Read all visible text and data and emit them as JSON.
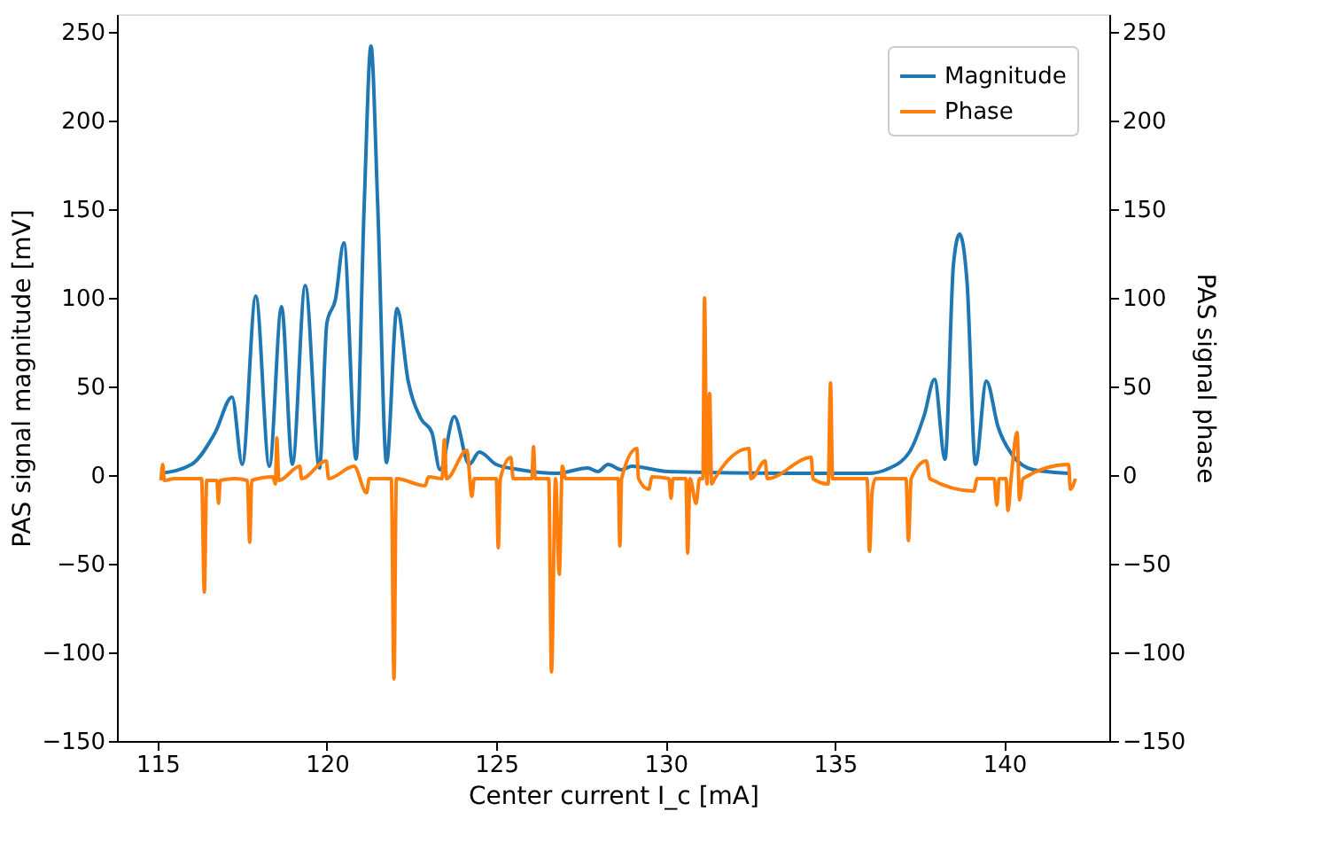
{
  "chart_data": {
    "type": "line",
    "xlabel": "Center current I_c [mA]",
    "ylabel": "PAS signal magnitude [mV]",
    "y2label": "PAS signal phase",
    "xlim": [
      113.8,
      143.1
    ],
    "xticks": [
      115,
      120,
      125,
      130,
      135,
      140
    ],
    "ylim": [
      -150,
      260
    ],
    "yticks": [
      -150,
      -100,
      -50,
      0,
      50,
      100,
      150,
      200,
      250
    ],
    "y2lim": [
      -150,
      260
    ],
    "y2ticks": [
      -150,
      -100,
      -50,
      0,
      50,
      100,
      150,
      200,
      250
    ],
    "grid": false,
    "legend": "top right",
    "line_style": "solid",
    "marker": "none",
    "series": [
      {
        "name": "Magnitude",
        "color": "#1f77b4",
        "x": [
          115.1,
          116.0,
          116.7,
          117.2,
          117.5,
          117.9,
          118.3,
          118.66,
          118.98,
          119.36,
          119.78,
          120.0,
          120.25,
          120.5,
          120.86,
          121.1,
          121.3,
          121.5,
          121.76,
          122.07,
          122.4,
          122.77,
          123.1,
          123.34,
          123.76,
          124.2,
          124.5,
          125.0,
          125.7,
          126.8,
          127.7,
          128.0,
          128.3,
          128.7,
          129.0,
          130.07,
          133.55,
          136.0,
          136.5,
          137.2,
          137.64,
          137.94,
          138.25,
          138.5,
          138.68,
          138.9,
          139.15,
          139.47,
          139.82,
          140.25,
          140.86,
          141.9
        ],
        "values": [
          1,
          6,
          24,
          44,
          6,
          101,
          5,
          95,
          6,
          107,
          4,
          86,
          99,
          131,
          9,
          152,
          242,
          152,
          7,
          94,
          53,
          32,
          24,
          3,
          33,
          6,
          13,
          6,
          3,
          1,
          4,
          2,
          6,
          3,
          5,
          2,
          1,
          1,
          3,
          13,
          34,
          54,
          9,
          119,
          136,
          109,
          6,
          53,
          27,
          11,
          3,
          1
        ]
      },
      {
        "name": "Phase",
        "color": "#ff7f0e",
        "axis": "y2",
        "x": [
          115.1,
          115.15,
          115.2,
          115.5,
          116.3,
          116.38,
          116.45,
          116.75,
          116.8,
          116.85,
          117.3,
          117.65,
          117.72,
          117.78,
          118.4,
          118.48,
          118.52,
          118.58,
          119.2,
          119.25,
          119.98,
          120.05,
          120.8,
          121.17,
          121.25,
          121.9,
          121.98,
          122.05,
          122.9,
          123.0,
          123.4,
          123.47,
          123.53,
          124.13,
          124.28,
          124.35,
          125.0,
          125.06,
          125.12,
          125.43,
          125.5,
          126.05,
          126.1,
          126.15,
          126.55,
          126.63,
          126.75,
          126.86,
          126.95,
          127.05,
          128.6,
          128.65,
          128.7,
          129.15,
          129.2,
          129.5,
          129.6,
          130.1,
          130.16,
          130.22,
          130.6,
          130.65,
          130.72,
          130.9,
          131.0,
          131.1,
          131.15,
          131.22,
          131.3,
          131.36,
          131.45,
          132.46,
          132.52,
          132.94,
          133.0,
          134.3,
          134.35,
          134.8,
          134.87,
          134.93,
          135.95,
          136.02,
          136.1,
          136.2,
          137.1,
          137.17,
          137.25,
          137.7,
          137.8,
          139.1,
          139.2,
          139.7,
          139.78,
          139.85,
          140.05,
          140.11,
          140.2,
          140.38,
          140.45,
          140.55,
          141.9,
          141.95,
          142.1
        ],
        "values": [
          -3,
          6,
          -3,
          -2,
          -2,
          -66,
          -3,
          -3,
          -16,
          -3,
          -2,
          -3,
          -38,
          -3,
          -1,
          -5,
          21,
          -3,
          5,
          -2,
          8,
          -2,
          5,
          -10,
          -2,
          -2,
          -115,
          -2,
          -6,
          -1,
          -2,
          20,
          -2,
          14,
          -12,
          -2,
          -2,
          -41,
          -2,
          10,
          -2,
          -2,
          16,
          -2,
          -2,
          -111,
          -2,
          -56,
          5,
          -2,
          -2,
          -40,
          -2,
          15,
          -2,
          -8,
          -1,
          -2,
          -13,
          -2,
          -2,
          -44,
          -2,
          -16,
          -2,
          -2,
          100,
          -5,
          46,
          -5,
          -2,
          15,
          -2,
          8,
          -2,
          10,
          -2,
          -5,
          52,
          -2,
          -2,
          -43,
          -9,
          -2,
          -2,
          -37,
          -2,
          8,
          -2,
          -9,
          -2,
          -2,
          -17,
          -2,
          -2,
          -20,
          -2,
          24,
          -14,
          -2,
          6,
          -8,
          -2
        ]
      }
    ]
  }
}
